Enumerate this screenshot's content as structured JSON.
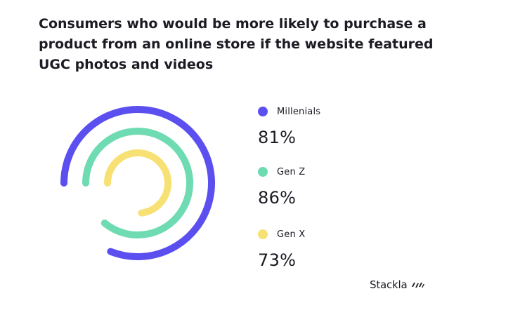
{
  "title_lines": [
    "Consumers who would be more likely to purchase a",
    "product from an online store if the website featured",
    "UGC photos and videos"
  ],
  "brand": {
    "name": "Stackla",
    "icon": "stackla-logo-icon"
  },
  "chart_data": {
    "type": "radial-bar",
    "title": "Consumers who would be more likely to purchase a product from an online store if the website featured UGC photos and videos",
    "unit": "%",
    "series": [
      {
        "name": "Millenials",
        "value": 81,
        "label": "81%",
        "color": "#5b4ff0"
      },
      {
        "name": "Gen Z",
        "value": 86,
        "label": "86%",
        "color": "#6edbb3"
      },
      {
        "name": "Gen X",
        "value": 73,
        "label": "73%",
        "color": "#f7e174"
      }
    ]
  }
}
